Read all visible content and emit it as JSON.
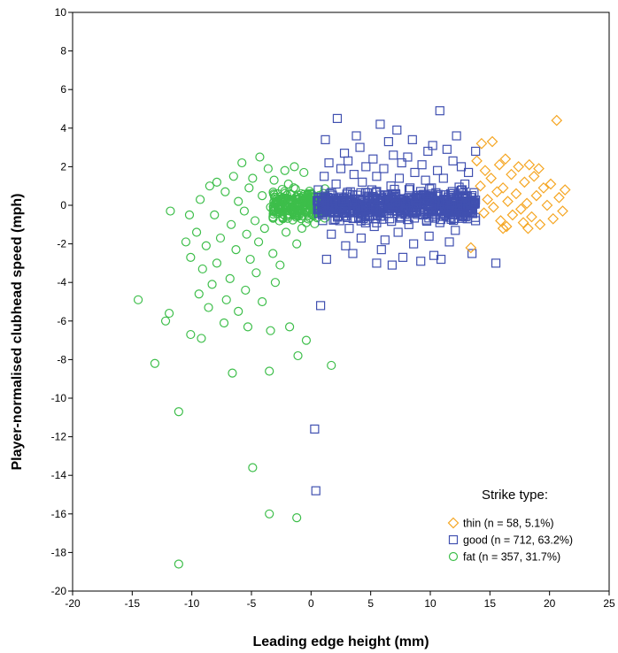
{
  "chart_data": {
    "type": "scatter",
    "xlabel": "Leading edge height (mm)",
    "ylabel": "Player-normalised clubhead speed (mph)",
    "xlim": [
      -20,
      25
    ],
    "ylim": [
      -20,
      10
    ],
    "xticks": [
      -20,
      -15,
      -10,
      -5,
      0,
      5,
      10,
      15,
      20,
      25
    ],
    "yticks": [
      10,
      8,
      6,
      4,
      2,
      0,
      -2,
      -4,
      -6,
      -8,
      -10,
      -12,
      -14,
      -16,
      -18,
      -20
    ],
    "grid": false,
    "legend": {
      "title": "Strike type:",
      "placement": "bottom-right",
      "entries": [
        {
          "label": "thin (n = 58, 5.1%)",
          "marker": "diamond",
          "color": "#F5A623"
        },
        {
          "label": "good (n = 712, 63.2%)",
          "marker": "square",
          "color": "#4050B0"
        },
        {
          "label": "fat (n = 357, 31.7%)",
          "marker": "circle",
          "color": "#3DBE4A"
        }
      ]
    },
    "series": [
      {
        "marker": "square",
        "color": "#4050B0",
        "points": [
          [
            2.2,
            4.5
          ],
          [
            5.8,
            4.2
          ],
          [
            10.8,
            4.9
          ],
          [
            12.2,
            3.6
          ],
          [
            7.2,
            3.9
          ],
          [
            3.8,
            3.6
          ],
          [
            1.2,
            3.4
          ],
          [
            8.5,
            3.4
          ],
          [
            10.2,
            3.1
          ],
          [
            6.5,
            3.3
          ],
          [
            4.1,
            3.0
          ],
          [
            11.4,
            2.9
          ],
          [
            13.8,
            2.8
          ],
          [
            9.8,
            2.8
          ],
          [
            2.8,
            2.7
          ],
          [
            6.9,
            2.6
          ],
          [
            8.1,
            2.5
          ],
          [
            5.2,
            2.4
          ],
          [
            3.1,
            2.3
          ],
          [
            11.9,
            2.3
          ],
          [
            1.5,
            2.2
          ],
          [
            7.6,
            2.2
          ],
          [
            9.3,
            2.1
          ],
          [
            4.6,
            2.0
          ],
          [
            12.6,
            2.0
          ],
          [
            2.5,
            1.9
          ],
          [
            6.1,
            1.9
          ],
          [
            10.6,
            1.8
          ],
          [
            13.2,
            1.7
          ],
          [
            8.7,
            1.7
          ],
          [
            3.6,
            1.6
          ],
          [
            5.5,
            1.5
          ],
          [
            1.1,
            1.5
          ],
          [
            7.4,
            1.4
          ],
          [
            11.1,
            1.4
          ],
          [
            9.6,
            1.3
          ],
          [
            4.3,
            1.2
          ],
          [
            2.1,
            1.1
          ],
          [
            12.9,
            1.1
          ],
          [
            6.7,
            1.0
          ],
          [
            8.3,
            0.9
          ],
          [
            10.1,
            0.9
          ],
          [
            0.6,
            0.8
          ],
          [
            5.1,
            0.8
          ],
          [
            3.3,
            0.7
          ],
          [
            11.7,
            0.6
          ],
          [
            7.1,
            0.6
          ],
          [
            13.5,
            0.5
          ],
          [
            9.1,
            0.4
          ],
          [
            4.8,
            0.4
          ],
          [
            2.7,
            0.3
          ],
          [
            6.3,
            0.2
          ],
          [
            10.4,
            0.2
          ],
          [
            1.4,
            0.1
          ],
          [
            8.9,
            0.0
          ],
          [
            12.3,
            0.0
          ],
          [
            5.7,
            -0.1
          ],
          [
            3.9,
            -0.2
          ],
          [
            7.8,
            -0.3
          ],
          [
            11.3,
            -0.3
          ],
          [
            0.9,
            -0.4
          ],
          [
            9.4,
            -0.5
          ],
          [
            4.5,
            -0.6
          ],
          [
            6.6,
            -0.7
          ],
          [
            13.1,
            -0.7
          ],
          [
            2.4,
            -0.8
          ],
          [
            10.8,
            -0.9
          ],
          [
            8.2,
            -1.0
          ],
          [
            5.3,
            -1.1
          ],
          [
            3.2,
            -1.2
          ],
          [
            12.1,
            -1.3
          ],
          [
            7.3,
            -1.4
          ],
          [
            1.7,
            -1.5
          ],
          [
            9.9,
            -1.6
          ],
          [
            4.2,
            -1.7
          ],
          [
            6.2,
            -1.8
          ],
          [
            11.6,
            -1.9
          ],
          [
            8.6,
            -2.0
          ],
          [
            2.9,
            -2.1
          ],
          [
            5.9,
            -2.3
          ],
          [
            3.5,
            -2.5
          ],
          [
            10.3,
            -2.6
          ],
          [
            7.7,
            -2.7
          ],
          [
            1.3,
            -2.8
          ],
          [
            9.2,
            -2.9
          ],
          [
            5.5,
            -3.0
          ],
          [
            6.8,
            -3.1
          ],
          [
            10.9,
            -2.8
          ],
          [
            15.5,
            -3.0
          ],
          [
            13.5,
            -2.5
          ],
          [
            0.8,
            -5.2
          ],
          [
            0.3,
            -11.6
          ],
          [
            0.4,
            -14.8
          ]
        ]
      },
      {
        "marker": "diamond",
        "color": "#F5A623",
        "points": [
          [
            20.6,
            4.4
          ],
          [
            14.3,
            3.2
          ],
          [
            15.2,
            3.3
          ],
          [
            16.3,
            2.4
          ],
          [
            13.9,
            2.3
          ],
          [
            15.8,
            2.1
          ],
          [
            17.4,
            2.0
          ],
          [
            18.3,
            2.1
          ],
          [
            19.1,
            1.9
          ],
          [
            14.6,
            1.8
          ],
          [
            16.8,
            1.6
          ],
          [
            18.7,
            1.5
          ],
          [
            15.1,
            1.4
          ],
          [
            17.9,
            1.2
          ],
          [
            20.1,
            1.1
          ],
          [
            14.2,
            1.0
          ],
          [
            16.1,
            0.9
          ],
          [
            19.5,
            0.9
          ],
          [
            21.3,
            0.8
          ],
          [
            15.6,
            0.7
          ],
          [
            17.2,
            0.6
          ],
          [
            18.9,
            0.5
          ],
          [
            20.8,
            0.4
          ],
          [
            14.8,
            0.3
          ],
          [
            16.5,
            0.2
          ],
          [
            18.1,
            0.1
          ],
          [
            19.8,
            0.0
          ],
          [
            15.3,
            -0.1
          ],
          [
            17.6,
            -0.2
          ],
          [
            21.1,
            -0.3
          ],
          [
            14.5,
            -0.4
          ],
          [
            16.9,
            -0.5
          ],
          [
            18.5,
            -0.6
          ],
          [
            20.3,
            -0.7
          ],
          [
            15.9,
            -0.8
          ],
          [
            17.8,
            -0.9
          ],
          [
            19.2,
            -1.0
          ],
          [
            16.4,
            -1.1
          ],
          [
            18.2,
            -1.2
          ],
          [
            16.1,
            -1.2
          ],
          [
            13.4,
            -2.2
          ]
        ]
      },
      {
        "marker": "circle",
        "color": "#3DBE4A",
        "points": [
          [
            -5.8,
            2.2
          ],
          [
            -4.3,
            2.5
          ],
          [
            -7.9,
            1.2
          ],
          [
            -3.6,
            1.9
          ],
          [
            -2.2,
            1.8
          ],
          [
            -6.5,
            1.5
          ],
          [
            -1.4,
            2.0
          ],
          [
            -4.9,
            1.4
          ],
          [
            -0.6,
            1.7
          ],
          [
            -8.5,
            1.0
          ],
          [
            -3.1,
            1.3
          ],
          [
            -5.2,
            0.9
          ],
          [
            -1.9,
            1.1
          ],
          [
            -7.2,
            0.7
          ],
          [
            -2.8,
            0.6
          ],
          [
            -9.3,
            0.3
          ],
          [
            -4.1,
            0.5
          ],
          [
            -6.1,
            0.2
          ],
          [
            -0.9,
            0.4
          ],
          [
            -11.8,
            -0.3
          ],
          [
            -3.4,
            -0.1
          ],
          [
            -5.6,
            -0.3
          ],
          [
            -1.6,
            -0.2
          ],
          [
            -8.1,
            -0.5
          ],
          [
            -2.4,
            -0.6
          ],
          [
            -4.7,
            -0.8
          ],
          [
            -10.2,
            -0.5
          ],
          [
            -6.7,
            -1.0
          ],
          [
            -0.4,
            -0.9
          ],
          [
            -3.9,
            -1.2
          ],
          [
            -9.6,
            -1.4
          ],
          [
            -5.4,
            -1.5
          ],
          [
            -2.1,
            -1.4
          ],
          [
            -7.6,
            -1.7
          ],
          [
            -10.5,
            -1.9
          ],
          [
            -4.4,
            -1.9
          ],
          [
            -8.8,
            -2.1
          ],
          [
            -1.2,
            -2.0
          ],
          [
            -6.3,
            -2.3
          ],
          [
            -3.2,
            -2.5
          ],
          [
            -10.1,
            -2.7
          ],
          [
            -5.1,
            -2.8
          ],
          [
            -7.9,
            -3.0
          ],
          [
            -2.6,
            -3.1
          ],
          [
            -9.1,
            -3.3
          ],
          [
            -4.6,
            -3.5
          ],
          [
            -6.8,
            -3.8
          ],
          [
            -3.0,
            -4.0
          ],
          [
            -8.3,
            -4.1
          ],
          [
            -5.5,
            -4.4
          ],
          [
            -9.4,
            -4.6
          ],
          [
            -7.1,
            -4.9
          ],
          [
            -4.1,
            -5.0
          ],
          [
            -8.6,
            -5.3
          ],
          [
            -6.1,
            -5.5
          ],
          [
            -11.9,
            -5.6
          ],
          [
            -12.2,
            -6.0
          ],
          [
            -7.3,
            -6.1
          ],
          [
            -5.3,
            -6.3
          ],
          [
            -3.4,
            -6.5
          ],
          [
            -10.1,
            -6.7
          ],
          [
            -9.2,
            -6.9
          ],
          [
            -14.5,
            -4.9
          ],
          [
            -1.8,
            -6.3
          ],
          [
            -0.4,
            -7.0
          ],
          [
            -1.1,
            -7.8
          ],
          [
            1.7,
            -8.3
          ],
          [
            -13.1,
            -8.2
          ],
          [
            -6.6,
            -8.7
          ],
          [
            -3.5,
            -8.6
          ],
          [
            -11.1,
            -10.7
          ],
          [
            -4.9,
            -13.6
          ],
          [
            -3.5,
            -16.0
          ],
          [
            -1.2,
            -16.2
          ],
          [
            -11.1,
            -18.6
          ]
        ]
      }
    ]
  }
}
